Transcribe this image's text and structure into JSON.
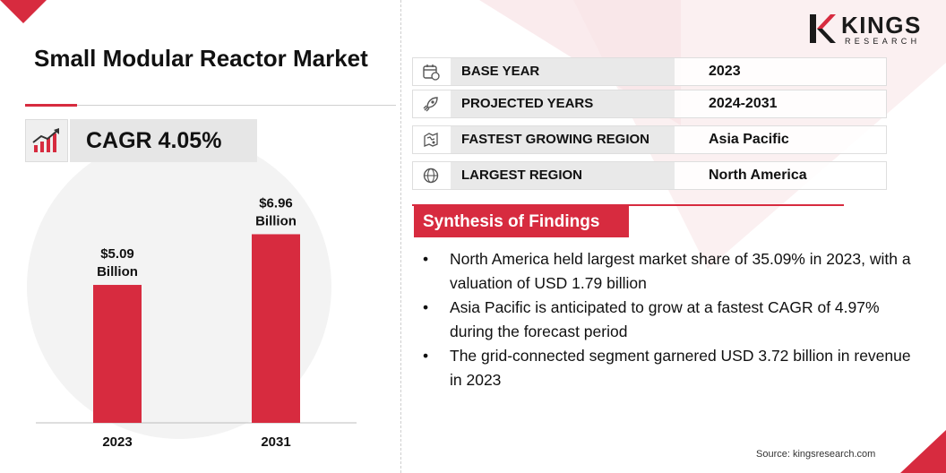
{
  "title": "Small Modular Reactor Market",
  "cagr": "CAGR 4.05%",
  "logo": {
    "name": "KINGS",
    "sub": "RESEARCH"
  },
  "info_rows": [
    {
      "icon": "calendar-icon",
      "label": "BASE YEAR",
      "value": "2023"
    },
    {
      "icon": "rocket-icon",
      "label": "PROJECTED YEARS",
      "value": "2024-2031"
    },
    {
      "icon": "region-map-icon",
      "label": "FASTEST GROWING REGION",
      "value": "Asia Pacific"
    },
    {
      "icon": "globe-icon",
      "label": "LARGEST REGION",
      "value": "North America"
    }
  ],
  "synthesis": {
    "header": "Synthesis of Findings",
    "findings": [
      "North America held largest market share of 35.09% in 2023, with a valuation of USD 1.79 billion",
      "Asia Pacific is anticipated to grow at a fastest CAGR of 4.97% during the forecast period",
      "The grid-connected segment garnered USD 3.72 billion in revenue in 2023"
    ]
  },
  "source": "Source: kingsresearch.com",
  "colors": {
    "accent": "#d72b3f",
    "bar": "#d72b3f",
    "label_bg": "#e9e9e9"
  },
  "chart_data": {
    "type": "bar",
    "categories": [
      "2023",
      "2031"
    ],
    "values": [
      5.09,
      6.96
    ],
    "data_labels": [
      [
        "$5.09",
        "Billion"
      ],
      [
        "$6.96",
        "Billion"
      ]
    ],
    "title": "",
    "xlabel": "",
    "ylabel": "",
    "ylim": [
      0,
      8
    ],
    "grid": false,
    "legend": "none"
  }
}
